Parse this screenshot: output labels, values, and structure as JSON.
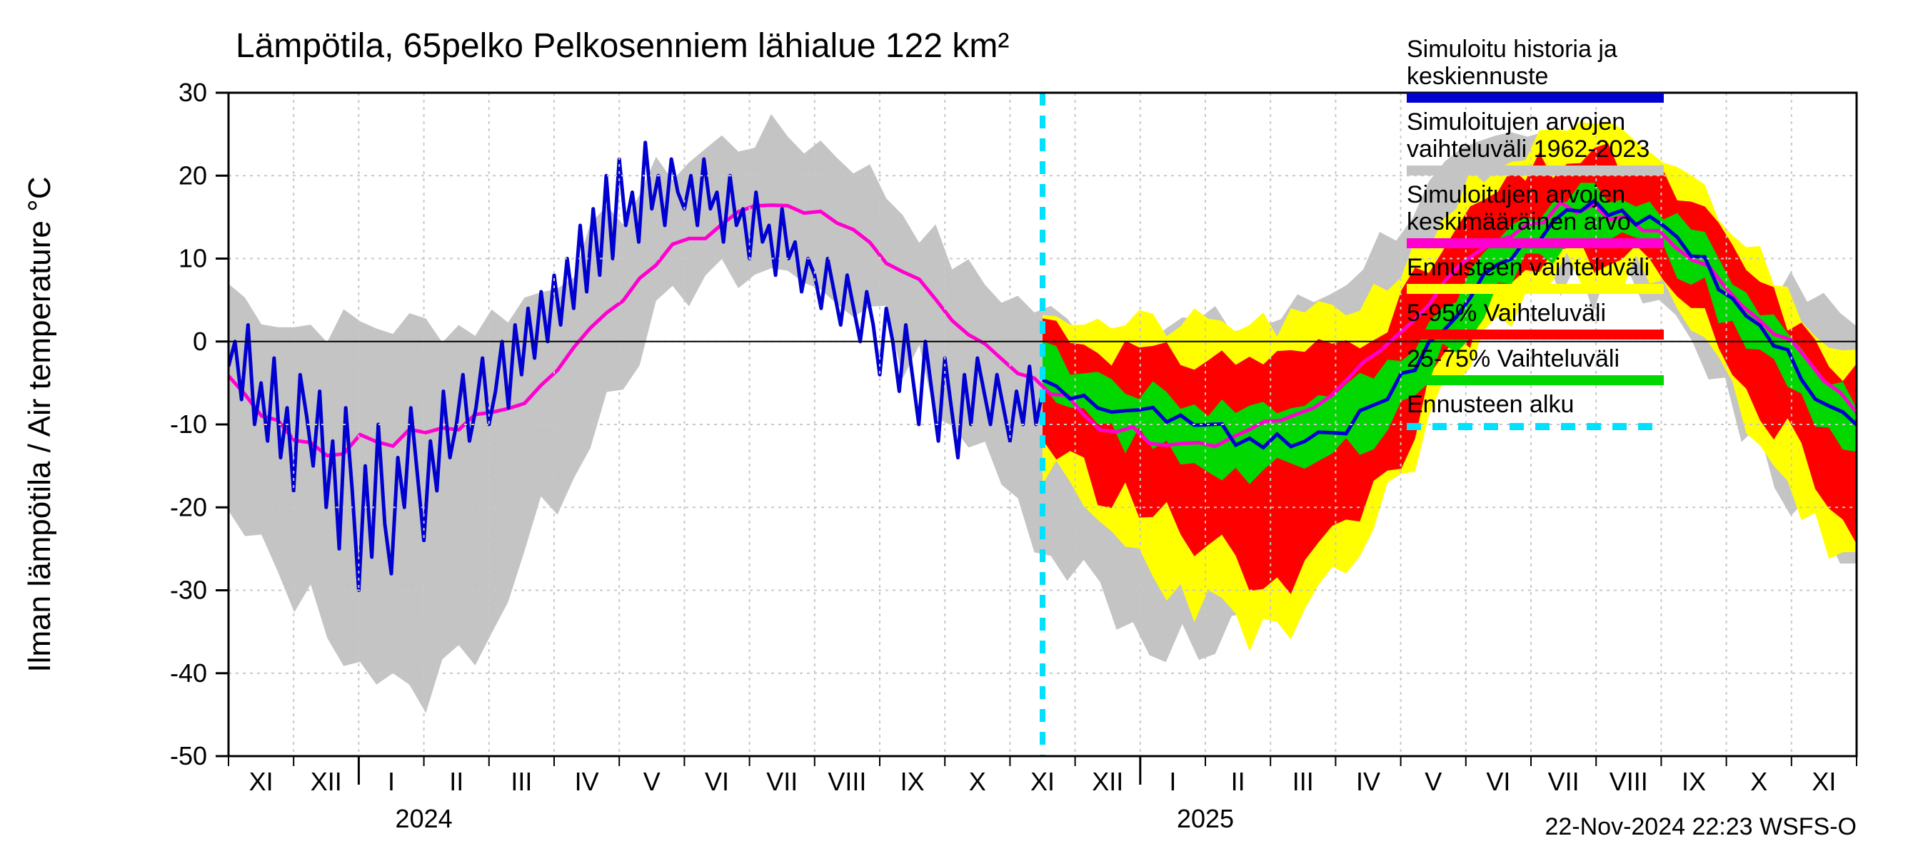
{
  "chart": {
    "type": "line-band",
    "title": "Lämpötila, 65pelko Pelkosenniem lähialue 122 km²",
    "ylabel": "Ilman lämpötila / Air temperature   °C",
    "footer": "22-Nov-2024 22:23 WSFS-O",
    "background_color": "#ffffff",
    "plot_border_color": "#000000",
    "grid_color": "#c8c8c8",
    "grid_dash": "4 6",
    "y_axis": {
      "min": -50,
      "max": 30,
      "tick_step": 10,
      "ticks": [
        -50,
        -40,
        -30,
        -20,
        -10,
        0,
        10,
        20,
        30
      ],
      "label_fontsize": 36
    },
    "x_axis": {
      "months": [
        "XI",
        "XII",
        "I",
        "II",
        "III",
        "IV",
        "V",
        "VI",
        "VII",
        "VIII",
        "IX",
        "X",
        "XI",
        "XII",
        "I",
        "II",
        "III",
        "IV",
        "V",
        "VI",
        "VII",
        "VIII",
        "IX",
        "X",
        "XI"
      ],
      "year_labels": [
        {
          "label": "2024",
          "month_index": 2
        },
        {
          "label": "2025",
          "month_index": 14
        }
      ],
      "year_tick_indices": [
        2,
        14
      ],
      "n_months": 25
    },
    "forecast_start_month_index": 12.5,
    "forecast_line": {
      "color": "#00e0ff",
      "width": 8,
      "dash": "18 14"
    },
    "colors": {
      "history_line": "#0000d0",
      "mean_line": "#ff00d0",
      "range_hist": "#c4c4c4",
      "range_full": "#ffff00",
      "range_5_95": "#ff0000",
      "range_25_75": "#00d800"
    },
    "line_widths": {
      "history": 5,
      "mean": 5
    },
    "legend": {
      "items": [
        {
          "label1": "Simuloitu historia ja",
          "label2": "keskiennuste",
          "swatch": "#0000d0",
          "type": "line"
        },
        {
          "label1": "Simuloitujen arvojen",
          "label2": "vaihteluväli 1962-2023",
          "swatch": "#c4c4c4",
          "type": "band"
        },
        {
          "label1": "Simuloitujen arvojen",
          "label2": "keskimääräinen arvo",
          "swatch": "#ff00d0",
          "type": "line"
        },
        {
          "label1": "Ennusteen vaihteluväli",
          "label2": "",
          "swatch": "#ffff00",
          "type": "band"
        },
        {
          "label1": "5-95% Vaihteluväli",
          "label2": "",
          "swatch": "#ff0000",
          "type": "band"
        },
        {
          "label1": "25-75% Vaihteluväli",
          "label2": "",
          "swatch": "#00d800",
          "type": "band"
        },
        {
          "label1": "Ennusteen alku",
          "label2": "",
          "swatch": "#00e0ff",
          "type": "dash"
        }
      ]
    },
    "climatology_mean": [
      -4,
      -7,
      -9,
      -10,
      -12,
      -12,
      -13,
      -13,
      -12,
      -12,
      -12,
      -11,
      -11,
      -11,
      -10,
      -9,
      -9,
      -8,
      -7,
      -5,
      -3,
      -1,
      1,
      3,
      5,
      7,
      9,
      11,
      12,
      13,
      14,
      15,
      16,
      16,
      16,
      15,
      15,
      14,
      13,
      12,
      10,
      9,
      7,
      5,
      3,
      1,
      0,
      -2,
      -4,
      -5,
      -6,
      -7,
      -9,
      -10,
      -11,
      -11,
      -12,
      -12,
      -12,
      -12,
      -12,
      -11,
      -11,
      -10,
      -10,
      -9,
      -8,
      -7,
      -5,
      -3,
      -1,
      1,
      3,
      5,
      7,
      9,
      11,
      12,
      13,
      14,
      15,
      16,
      16,
      16,
      15,
      15,
      14,
      13,
      12,
      10,
      9,
      7,
      5,
      3,
      1,
      0,
      -2,
      -4,
      -6,
      -8
    ],
    "climatology_lo": [
      -22,
      -24,
      -26,
      -28,
      -30,
      -32,
      -34,
      -36,
      -38,
      -40,
      -42,
      -44,
      -42,
      -40,
      -38,
      -36,
      -34,
      -30,
      -26,
      -22,
      -18,
      -14,
      -10,
      -6,
      -3,
      0,
      2,
      4,
      5,
      6,
      7,
      7,
      8,
      8,
      8,
      7,
      7,
      6,
      5,
      3,
      1,
      -1,
      -3,
      -6,
      -9,
      -12,
      -15,
      -18,
      -20,
      -22,
      -24,
      -26,
      -28,
      -30,
      -32,
      -34,
      -36,
      -36,
      -36,
      -38,
      -38,
      -36,
      -34,
      -32,
      -30,
      -28,
      -24,
      -20,
      -16,
      -12,
      -8,
      -5,
      -2,
      0,
      2,
      4,
      5,
      6,
      7,
      7,
      8,
      8,
      8,
      7,
      7,
      6,
      5,
      3,
      1,
      -1,
      -3,
      -6,
      -9,
      -12,
      -15,
      -18,
      -20,
      -22,
      -24,
      -26
    ],
    "climatology_hi": [
      7,
      5,
      4,
      3,
      2,
      2,
      2,
      2,
      2,
      2,
      2,
      2,
      2,
      2,
      2,
      2,
      3,
      4,
      5,
      6,
      8,
      10,
      12,
      14,
      16,
      18,
      20,
      21,
      22,
      23,
      24,
      24,
      25,
      25,
      25,
      24,
      24,
      23,
      22,
      20,
      18,
      16,
      14,
      12,
      10,
      8,
      7,
      6,
      5,
      4,
      3,
      2,
      2,
      2,
      2,
      2,
      2,
      2,
      2,
      2,
      2,
      2,
      2,
      2,
      3,
      4,
      5,
      6,
      8,
      10,
      12,
      14,
      16,
      18,
      20,
      21,
      22,
      23,
      24,
      24,
      25,
      25,
      25,
      24,
      24,
      23,
      22,
      20,
      18,
      16,
      14,
      12,
      10,
      8,
      7,
      6,
      5,
      4,
      3,
      2
    ],
    "history_series": [
      -3,
      0,
      -7,
      2,
      -10,
      -5,
      -12,
      -2,
      -14,
      -8,
      -18,
      -4,
      -9,
      -15,
      -6,
      -20,
      -12,
      -25,
      -8,
      -18,
      -30,
      -15,
      -26,
      -10,
      -22,
      -28,
      -14,
      -20,
      -8,
      -16,
      -24,
      -12,
      -18,
      -6,
      -14,
      -10,
      -4,
      -12,
      -8,
      -2,
      -10,
      -6,
      0,
      -8,
      2,
      -4,
      4,
      -2,
      6,
      0,
      8,
      2,
      10,
      4,
      14,
      6,
      16,
      8,
      20,
      10,
      22,
      14,
      18,
      12,
      24,
      16,
      20,
      14,
      22,
      18,
      16,
      20,
      14,
      22,
      16,
      18,
      12,
      20,
      14,
      16,
      10,
      18,
      12,
      14,
      8,
      16,
      10,
      12,
      6,
      10,
      8,
      4,
      10,
      6,
      2,
      8,
      4,
      0,
      6,
      2,
      -4,
      4,
      0,
      -6,
      2,
      -4,
      -10,
      0,
      -6,
      -12,
      -2,
      -8,
      -14,
      -4,
      -10,
      -2,
      -6,
      -10,
      -4,
      -8,
      -12,
      -6,
      -10,
      -3,
      -10,
      -6
    ],
    "forecast_median": [
      -4,
      -5,
      -6,
      -7,
      -7,
      -8,
      -8,
      -9,
      -9,
      -10,
      -10,
      -10,
      -11,
      -11,
      -12,
      -12,
      -12,
      -12,
      -12,
      -11,
      -11,
      -10,
      -10,
      -9,
      -8,
      -7,
      -5,
      -3,
      -1,
      1,
      3,
      5,
      7,
      9,
      11,
      12,
      13,
      14,
      15,
      16,
      16,
      16,
      15,
      15,
      14,
      13,
      12,
      10,
      9,
      7,
      5,
      3,
      1,
      0,
      -2,
      -4,
      -6,
      -8,
      -9,
      -10
    ],
    "forecast_p25": [
      -7,
      -8,
      -9,
      -10,
      -10,
      -11,
      -12,
      -12,
      -13,
      -13,
      -14,
      -14,
      -15,
      -15,
      -16,
      -16,
      -16,
      -16,
      -16,
      -15,
      -15,
      -14,
      -13,
      -12,
      -11,
      -10,
      -8,
      -6,
      -4,
      -2,
      0,
      2,
      4,
      6,
      8,
      9,
      10,
      11,
      12,
      13,
      13,
      13,
      12,
      12,
      11,
      10,
      9,
      7,
      6,
      4,
      2,
      0,
      -2,
      -3,
      -5,
      -7,
      -9,
      -11,
      -12,
      -13
    ],
    "forecast_p75": [
      -1,
      -2,
      -3,
      -4,
      -4,
      -5,
      -5,
      -6,
      -6,
      -7,
      -7,
      -7,
      -8,
      -8,
      -8,
      -8,
      -8,
      -8,
      -8,
      -7,
      -7,
      -6,
      -6,
      -5,
      -4,
      -3,
      -2,
      0,
      2,
      4,
      6,
      8,
      10,
      12,
      14,
      15,
      16,
      17,
      18,
      18,
      18,
      18,
      17,
      17,
      16,
      15,
      14,
      13,
      12,
      10,
      8,
      6,
      4,
      3,
      1,
      -1,
      -3,
      -5,
      -6,
      -7
    ],
    "forecast_p05": [
      -12,
      -13,
      -15,
      -16,
      -17,
      -18,
      -19,
      -20,
      -21,
      -22,
      -23,
      -24,
      -25,
      -26,
      -27,
      -28,
      -28,
      -28,
      -28,
      -27,
      -26,
      -24,
      -22,
      -20,
      -18,
      -16,
      -13,
      -10,
      -7,
      -4,
      -1,
      1,
      3,
      5,
      6,
      7,
      8,
      9,
      10,
      11,
      11,
      11,
      10,
      10,
      9,
      8,
      6,
      4,
      2,
      0,
      -2,
      -4,
      -7,
      -9,
      -12,
      -15,
      -18,
      -20,
      -21,
      -22
    ],
    "forecast_p95": [
      3,
      2,
      1,
      0,
      0,
      -1,
      -1,
      -1,
      -2,
      -2,
      -2,
      -2,
      -2,
      -2,
      -2,
      -2,
      -2,
      -2,
      -2,
      -1,
      -1,
      0,
      0,
      1,
      2,
      3,
      5,
      7,
      9,
      11,
      13,
      15,
      17,
      18,
      19,
      20,
      21,
      21,
      22,
      22,
      22,
      22,
      21,
      21,
      20,
      19,
      18,
      16,
      15,
      13,
      11,
      9,
      7,
      5,
      3,
      1,
      -1,
      -2,
      -3,
      -4
    ],
    "forecast_min": [
      -15,
      -17,
      -19,
      -21,
      -22,
      -23,
      -25,
      -26,
      -28,
      -29,
      -30,
      -31,
      -32,
      -33,
      -34,
      -35,
      -35,
      -36,
      -35,
      -34,
      -32,
      -30,
      -27,
      -25,
      -22,
      -19,
      -16,
      -13,
      -10,
      -7,
      -4,
      -2,
      0,
      2,
      4,
      5,
      6,
      7,
      8,
      9,
      9,
      9,
      8,
      8,
      7,
      5,
      3,
      1,
      -1,
      -3,
      -6,
      -9,
      -12,
      -14,
      -17,
      -20,
      -23,
      -25,
      -26,
      -27
    ],
    "forecast_max": [
      5,
      4,
      3,
      3,
      2,
      2,
      2,
      2,
      2,
      2,
      2,
      2,
      2,
      2,
      2,
      2,
      2,
      2,
      2,
      3,
      3,
      4,
      4,
      5,
      6,
      7,
      9,
      11,
      13,
      15,
      17,
      19,
      20,
      21,
      22,
      23,
      24,
      24,
      25,
      25,
      25,
      25,
      24,
      24,
      23,
      22,
      21,
      19,
      18,
      16,
      14,
      12,
      10,
      8,
      6,
      4,
      2,
      1,
      0,
      -1
    ]
  }
}
